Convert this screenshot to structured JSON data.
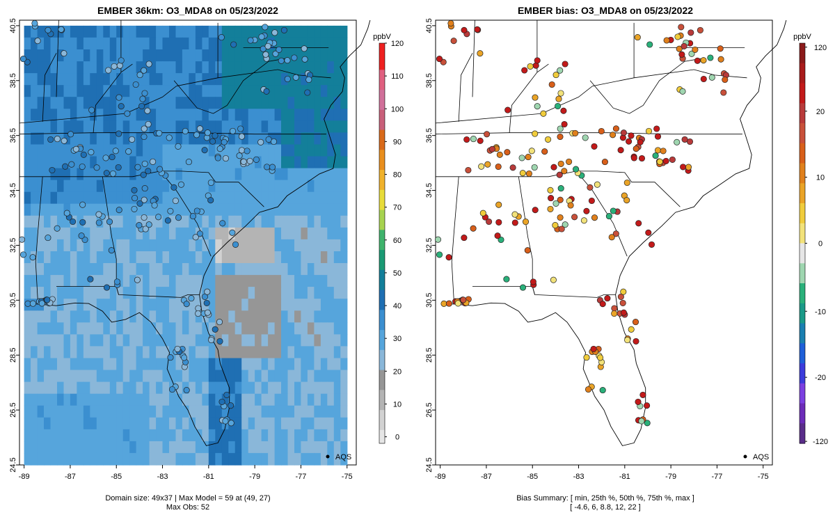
{
  "colors": {
    "conc_scale": [
      "#e6e6e6",
      "#d2d2d2",
      "#b4b4b4",
      "#969696",
      "#8ab7d9",
      "#56a5dc",
      "#3b8fd0",
      "#1f6fb3",
      "#137f9a",
      "#1b9a74",
      "#3fb36c",
      "#a7d350",
      "#e8dc3a",
      "#f0b22c",
      "#e98f1e",
      "#d96a1a",
      "#c9607a",
      "#d0709a",
      "#e06080",
      "#ee2020"
    ],
    "bias_scale": [
      "#5a2d8a",
      "#6c2cb8",
      "#7b3fe0",
      "#3b3bdb",
      "#1e5fd8",
      "#1a7fb0",
      "#1a9a88",
      "#2ab07a",
      "#9fd6b0",
      "#e6e6e6",
      "#f2e27a",
      "#f0cc3c",
      "#eaa427",
      "#e0801c",
      "#d85f1a",
      "#c8503a",
      "#b83a3a",
      "#c21a1a",
      "#a91b1b",
      "#8b1a1a"
    ],
    "outline": "#000000",
    "point_edge": "#222222"
  },
  "left_panel": {
    "title": "EMBER 36km: O3_MDA8 on 05/23/2022",
    "colorbar_unit": "ppbV",
    "colorbar_ticks": [
      "0",
      "10",
      "20",
      "30",
      "40",
      "50",
      "60",
      "70",
      "80",
      "90",
      "100",
      "110",
      "120"
    ],
    "legend_label": "AQS",
    "caption_line1": "Domain size: 49x37 | Max Model = 59 at (49, 27)",
    "caption_line2": "Max Obs: 52"
  },
  "right_panel": {
    "title": "EMBER bias: O3_MDA8 on 05/23/2022",
    "colorbar_unit": "ppbV",
    "colorbar_ticks": [
      "-120",
      "-20",
      "-10",
      "0",
      "10",
      "20",
      "120"
    ],
    "legend_label": "AQS",
    "caption_line1": "Bias Summary: [ min, 25th %, 50th %, 75th %, max ]",
    "caption_line2": "[ -4.6,   6,   8.8,   12,   22 ]"
  },
  "axes": {
    "x_ticks": [
      "-89",
      "-87",
      "-85",
      "-83",
      "-81",
      "-79",
      "-77",
      "-75"
    ],
    "y_ticks": [
      "24.5",
      "26.5",
      "28.5",
      "30.5",
      "32.5",
      "34.5",
      "36.5",
      "38.5",
      "40.5"
    ]
  },
  "chart_data": [
    {
      "type": "heatmap",
      "title": "EMBER 36km: O3_MDA8 on 05/23/2022",
      "xlim": [
        -89.2,
        -74.6
      ],
      "ylim": [
        24.5,
        40.7
      ],
      "colorbar": {
        "label": "ppbV",
        "range": [
          0,
          120
        ]
      },
      "domain_size": "49x37",
      "max_model": 59,
      "max_obs": 52
    },
    {
      "type": "scatter",
      "title": "EMBER bias: O3_MDA8 on 05/23/2022",
      "xlim": [
        -89.2,
        -74.6
      ],
      "ylim": [
        24.5,
        40.7
      ],
      "colorbar": {
        "label": "ppbV",
        "ticks": [
          -120,
          -20,
          -10,
          0,
          10,
          20,
          120
        ]
      },
      "bias_summary": {
        "min": -4.6,
        "p25": 6,
        "p50": 8.8,
        "p75": 12,
        "max": 22
      }
    }
  ]
}
